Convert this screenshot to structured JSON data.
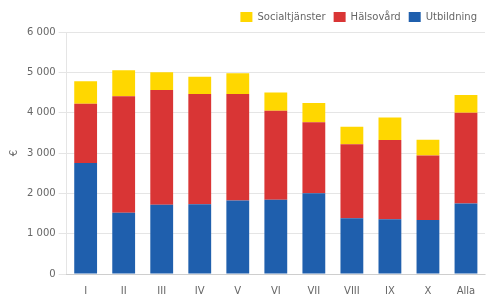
{
  "chart_data": {
    "type": "bar",
    "stacked": true,
    "categories": [
      "I",
      "II",
      "III",
      "IV",
      "V",
      "VI",
      "VII",
      "VIII",
      "IX",
      "X",
      "Alla"
    ],
    "series": [
      {
        "name": "Utbildning",
        "color": "#1F5FAD",
        "values": [
          2750,
          1520,
          1720,
          1730,
          1820,
          1840,
          2000,
          1380,
          1360,
          1340,
          1750
        ]
      },
      {
        "name": "Hälsovård",
        "color": "#D93535",
        "values": [
          1470,
          2890,
          2840,
          2730,
          2640,
          2210,
          1760,
          1840,
          1960,
          1600,
          2250
        ]
      },
      {
        "name": "Socialtjänster",
        "color": "#FFD700",
        "values": [
          560,
          640,
          440,
          430,
          520,
          450,
          480,
          430,
          560,
          390,
          440
        ]
      }
    ],
    "ylabel": "€",
    "ylim": [
      0,
      6000
    ],
    "yticks": [
      0,
      {
        "value": 1000,
        "label": "1 000"
      },
      {
        "value": 2000,
        "label": "2 000"
      },
      {
        "value": 3000,
        "label": "3 000"
      },
      {
        "value": 4000,
        "label": "4 000"
      },
      {
        "value": 5000,
        "label": "5 000"
      },
      {
        "value": 6000,
        "label": "6 000"
      }
    ],
    "grid": true,
    "legend": "upper right"
  }
}
